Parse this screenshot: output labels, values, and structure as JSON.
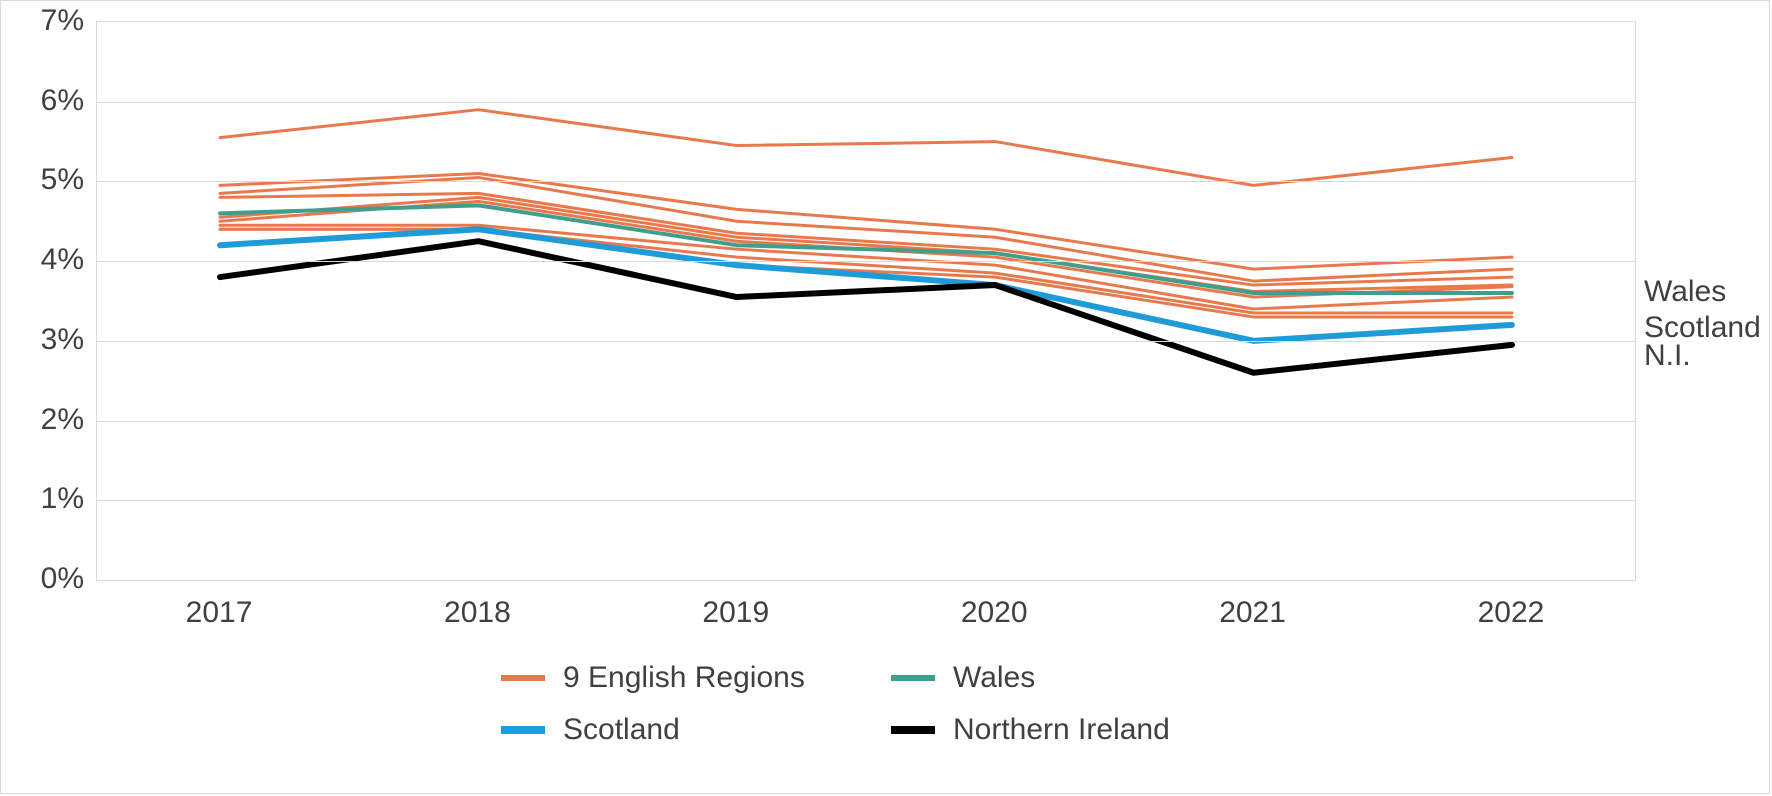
{
  "chart": {
    "type": "line",
    "background_color": "#ffffff",
    "border_color": "#d9d9d9",
    "grid_color": "#d9d9d9",
    "text_color": "#404040",
    "y_axis": {
      "min": 0,
      "max": 7,
      "ticks": [
        0,
        1,
        2,
        3,
        4,
        5,
        6,
        7
      ],
      "labels": [
        "0%",
        "1%",
        "2%",
        "3%",
        "4%",
        "5%",
        "6%",
        "7%"
      ],
      "label_fontsize": 30
    },
    "x_axis": {
      "categories": [
        "2017",
        "2018",
        "2019",
        "2020",
        "2021",
        "2022"
      ],
      "label_fontsize": 30
    },
    "series": {
      "english_regions": {
        "label": "9 English Regions",
        "color": "#e8794d",
        "line_width": 3,
        "lines": [
          [
            5.55,
            5.9,
            5.45,
            5.5,
            4.95,
            5.3
          ],
          [
            4.95,
            5.1,
            4.65,
            4.4,
            3.9,
            4.05
          ],
          [
            4.85,
            5.05,
            4.5,
            4.3,
            3.75,
            3.9
          ],
          [
            4.8,
            4.85,
            4.35,
            4.15,
            3.7,
            3.8
          ],
          [
            4.55,
            4.8,
            4.3,
            4.1,
            3.62,
            3.7
          ],
          [
            4.5,
            4.75,
            4.25,
            4.05,
            3.55,
            3.68
          ],
          [
            4.45,
            4.45,
            4.15,
            3.95,
            3.4,
            3.55
          ],
          [
            4.4,
            4.4,
            4.05,
            3.85,
            3.35,
            3.35
          ],
          [
            4.4,
            4.4,
            3.95,
            3.8,
            3.3,
            3.3
          ]
        ]
      },
      "wales": {
        "label": "Wales",
        "direct_label": "Wales",
        "color": "#3f9e8c",
        "line_width": 4,
        "values": [
          4.6,
          4.7,
          4.2,
          4.1,
          3.6,
          3.6
        ]
      },
      "scotland": {
        "label": "Scotland",
        "direct_label": "Scotland",
        "color": "#1f9bd8",
        "line_width": 6,
        "values": [
          4.2,
          4.4,
          3.95,
          3.7,
          3.0,
          3.2
        ]
      },
      "northern_ireland": {
        "label": "Northern Ireland",
        "direct_label": "N.I.",
        "color": "#000000",
        "line_width": 6,
        "values": [
          3.8,
          4.25,
          3.55,
          3.7,
          2.6,
          2.95
        ]
      }
    },
    "legend": {
      "items": [
        {
          "key": "english_regions",
          "label": "9 English Regions"
        },
        {
          "key": "wales",
          "label": "Wales"
        },
        {
          "key": "scotland",
          "label": "Scotland"
        },
        {
          "key": "northern_ireland",
          "label": "Northern Ireland"
        }
      ],
      "fontsize": 30
    }
  }
}
